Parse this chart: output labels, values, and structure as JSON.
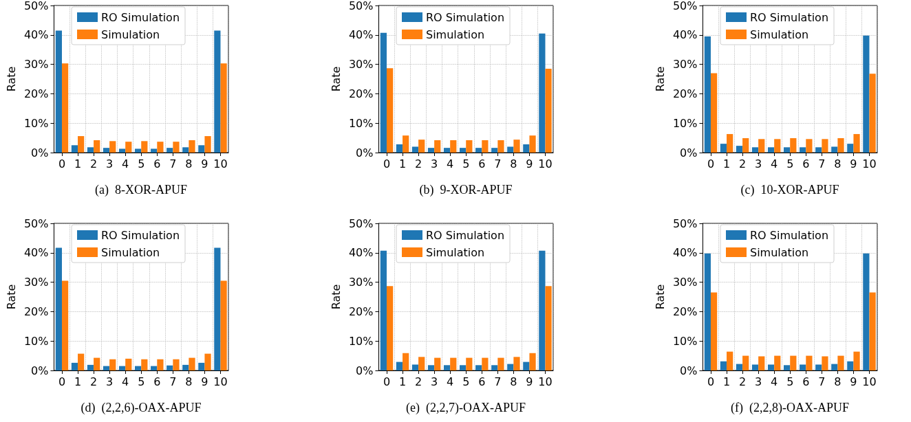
{
  "chart_data": [
    {
      "type": "bar",
      "title": "(a)  8-XOR-APUF",
      "ylabel": "Rate",
      "categories": [
        "0",
        "1",
        "2",
        "3",
        "4",
        "5",
        "6",
        "7",
        "8",
        "9",
        "10"
      ],
      "series": [
        {
          "name": "RO Simulation",
          "color": "#1f77b4",
          "values": [
            41.5,
            2.5,
            1.8,
            1.6,
            1.3,
            1.3,
            1.3,
            1.6,
            1.8,
            2.5,
            41.5
          ]
        },
        {
          "name": "Simulation",
          "color": "#ff7f0e",
          "values": [
            30.3,
            5.6,
            4.2,
            3.9,
            3.7,
            3.9,
            3.7,
            3.7,
            4.2,
            5.6,
            30.3
          ]
        }
      ],
      "ylim": [
        0,
        50
      ],
      "yticks": [
        {
          "value": 0,
          "label": "0%"
        },
        {
          "value": 10,
          "label": "10%"
        },
        {
          "value": 20,
          "label": "20%"
        },
        {
          "value": 30,
          "label": "30%"
        },
        {
          "value": 40,
          "label": "40%"
        },
        {
          "value": 50,
          "label": "50%"
        }
      ],
      "grid": true,
      "legend": "top"
    },
    {
      "type": "bar",
      "title": "(b)  9-XOR-APUF",
      "ylabel": "Rate",
      "categories": [
        "0",
        "1",
        "2",
        "3",
        "4",
        "5",
        "6",
        "7",
        "8",
        "9",
        "10"
      ],
      "series": [
        {
          "name": "RO Simulation",
          "color": "#1f77b4",
          "values": [
            40.7,
            2.8,
            2.0,
            1.6,
            1.6,
            1.6,
            1.6,
            1.6,
            2.0,
            2.8,
            40.5
          ]
        },
        {
          "name": "Simulation",
          "color": "#ff7f0e",
          "values": [
            28.7,
            5.8,
            4.4,
            4.2,
            4.2,
            4.2,
            4.2,
            4.2,
            4.4,
            5.8,
            28.5
          ]
        }
      ],
      "ylim": [
        0,
        50
      ],
      "yticks": [
        {
          "value": 0,
          "label": "0%"
        },
        {
          "value": 10,
          "label": "10%"
        },
        {
          "value": 20,
          "label": "20%"
        },
        {
          "value": 30,
          "label": "30%"
        },
        {
          "value": 40,
          "label": "40%"
        },
        {
          "value": 50,
          "label": "50%"
        }
      ],
      "grid": true,
      "legend": "top"
    },
    {
      "type": "bar",
      "title": "(c)  10-XOR-APUF",
      "ylabel": "Rate",
      "categories": [
        "0",
        "1",
        "2",
        "3",
        "4",
        "5",
        "6",
        "7",
        "8",
        "9",
        "10"
      ],
      "series": [
        {
          "name": "RO Simulation",
          "color": "#1f77b4",
          "values": [
            39.5,
            3.0,
            2.3,
            1.8,
            1.8,
            1.8,
            1.8,
            1.8,
            2.0,
            3.0,
            39.8
          ]
        },
        {
          "name": "Simulation",
          "color": "#ff7f0e",
          "values": [
            27.0,
            6.3,
            4.9,
            4.6,
            4.6,
            4.9,
            4.6,
            4.6,
            4.9,
            6.3,
            26.8
          ]
        }
      ],
      "ylim": [
        0,
        50
      ],
      "yticks": [
        {
          "value": 0,
          "label": "0%"
        },
        {
          "value": 10,
          "label": "10%"
        },
        {
          "value": 20,
          "label": "20%"
        },
        {
          "value": 30,
          "label": "30%"
        },
        {
          "value": 40,
          "label": "40%"
        },
        {
          "value": 50,
          "label": "50%"
        }
      ],
      "grid": true,
      "legend": "top"
    },
    {
      "type": "bar",
      "title": "(d)  (2,2,6)-OAX-APUF",
      "ylabel": "Rate",
      "categories": [
        "0",
        "1",
        "2",
        "3",
        "4",
        "5",
        "6",
        "7",
        "8",
        "9",
        "10"
      ],
      "series": [
        {
          "name": "RO Simulation",
          "color": "#1f77b4",
          "values": [
            41.7,
            2.6,
            1.9,
            1.5,
            1.5,
            1.5,
            1.5,
            1.7,
            1.9,
            2.6,
            41.7
          ]
        },
        {
          "name": "Simulation",
          "color": "#ff7f0e",
          "values": [
            30.5,
            5.7,
            4.3,
            3.8,
            4.0,
            3.8,
            3.8,
            3.8,
            4.3,
            5.7,
            30.5
          ]
        }
      ],
      "ylim": [
        0,
        50
      ],
      "yticks": [
        {
          "value": 0,
          "label": "0%"
        },
        {
          "value": 10,
          "label": "10%"
        },
        {
          "value": 20,
          "label": "20%"
        },
        {
          "value": 30,
          "label": "30%"
        },
        {
          "value": 40,
          "label": "40%"
        },
        {
          "value": 50,
          "label": "50%"
        }
      ],
      "grid": true,
      "legend": "top"
    },
    {
      "type": "bar",
      "title": "(e)  (2,2,7)-OAX-APUF",
      "ylabel": "Rate",
      "categories": [
        "0",
        "1",
        "2",
        "3",
        "4",
        "5",
        "6",
        "7",
        "8",
        "9",
        "10"
      ],
      "series": [
        {
          "name": "RO Simulation",
          "color": "#1f77b4",
          "values": [
            40.7,
            2.9,
            2.0,
            1.8,
            1.8,
            1.8,
            1.8,
            1.8,
            2.2,
            2.9,
            40.7
          ]
        },
        {
          "name": "Simulation",
          "color": "#ff7f0e",
          "values": [
            28.7,
            5.9,
            4.6,
            4.3,
            4.3,
            4.3,
            4.3,
            4.3,
            4.6,
            5.9,
            28.7
          ]
        }
      ],
      "ylim": [
        0,
        50
      ],
      "yticks": [
        {
          "value": 0,
          "label": "0%"
        },
        {
          "value": 10,
          "label": "10%"
        },
        {
          "value": 20,
          "label": "20%"
        },
        {
          "value": 30,
          "label": "30%"
        },
        {
          "value": 40,
          "label": "40%"
        },
        {
          "value": 50,
          "label": "50%"
        }
      ],
      "grid": true,
      "legend": "top"
    },
    {
      "type": "bar",
      "title": "(f)  (2,2,8)-OAX-APUF",
      "ylabel": "Rate",
      "categories": [
        "0",
        "1",
        "2",
        "3",
        "4",
        "5",
        "6",
        "7",
        "8",
        "9",
        "10"
      ],
      "series": [
        {
          "name": "RO Simulation",
          "color": "#1f77b4",
          "values": [
            39.8,
            3.1,
            2.2,
            2.0,
            2.0,
            1.8,
            2.0,
            2.0,
            2.2,
            3.1,
            39.8
          ]
        },
        {
          "name": "Simulation",
          "color": "#ff7f0e",
          "values": [
            26.5,
            6.4,
            5.0,
            4.8,
            5.0,
            5.0,
            5.0,
            4.8,
            5.0,
            6.4,
            26.5
          ]
        }
      ],
      "ylim": [
        0,
        50
      ],
      "yticks": [
        {
          "value": 0,
          "label": "0%"
        },
        {
          "value": 10,
          "label": "10%"
        },
        {
          "value": 20,
          "label": "20%"
        },
        {
          "value": 30,
          "label": "30%"
        },
        {
          "value": 40,
          "label": "40%"
        },
        {
          "value": 50,
          "label": "50%"
        }
      ],
      "grid": true,
      "legend": "top"
    }
  ]
}
